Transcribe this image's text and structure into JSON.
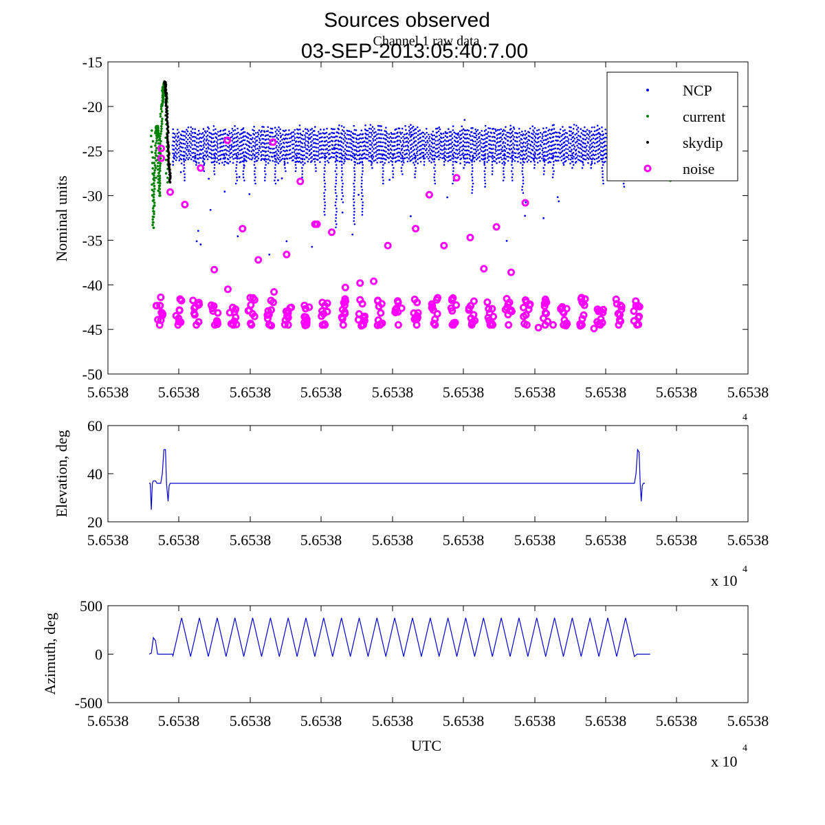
{
  "figure": {
    "title_line1": "Sources observed",
    "subtitle": "Channel 1 raw data",
    "title_line2": "03-SEP-2013:05:40:7.00"
  },
  "colors": {
    "ncp": "#0000ff",
    "current": "#008000",
    "skydip": "#000000",
    "noise": "#ff00ff",
    "line": "#0000cc",
    "axis": "#000000"
  },
  "chart_data": [
    {
      "type": "scatter",
      "panel": "raw-data",
      "ylabel": "Nominal units",
      "ylim": [
        -50,
        -15
      ],
      "yticks": [
        "-15",
        "-20",
        "-25",
        "-30",
        "-35",
        "-40",
        "-45",
        "-50"
      ],
      "xticklabels": [
        "5.6538",
        "5.6538",
        "5.6538",
        "5.6538",
        "5.6538",
        "5.6538",
        "5.6538",
        "5.6538",
        "5.6538",
        "5.6538"
      ],
      "xlim_rel": [
        0,
        1
      ],
      "legend_position": "top-right",
      "series": [
        {
          "name": "NCP",
          "marker": "dot",
          "band_top": -22.5,
          "band_bottom": -26.0,
          "x_start": 0.045,
          "x_end": 0.955,
          "n_scans": 24
        },
        {
          "name": "current",
          "marker": "dot",
          "x": [
            0.005,
            0.008,
            0.011,
            0.013,
            0.015,
            0.017,
            0.019,
            0.021,
            0.024,
            0.027,
            0.03,
            0.033,
            0.034
          ],
          "y": [
            -22.7,
            -33.6,
            -28.0,
            -23.0,
            -22.2,
            -23.4,
            -30.0,
            -25.0,
            -20.0,
            -18.0,
            -17.3,
            -19.5,
            -28.5
          ]
        },
        {
          "name": "skydip",
          "marker": "dot",
          "x": [
            0.03,
            0.032,
            0.034,
            0.036,
            0.038,
            0.04
          ],
          "y": [
            -17.2,
            -18.5,
            -21.0,
            -24.0,
            -26.5,
            -28.5
          ]
        },
        {
          "name": "noise",
          "marker": "circle",
          "cluster_center": -43.0,
          "cluster_halfwidth": 1.6,
          "x_start": 0.02,
          "x_end": 0.93,
          "n_clusters": 27,
          "outliers_x": [
            0.023,
            0.023,
            0.022,
            0.04,
            0.068,
            0.098,
            0.124,
            0.149,
            0.15,
            0.178,
            0.208,
            0.236,
            0.238,
            0.262,
            0.288,
            0.316,
            0.32,
            0.348,
            0.374,
            0.402,
            0.428,
            0.455,
            0.508,
            0.534,
            0.562,
            0.586,
            0.612,
            0.638,
            0.662,
            0.69,
            0.717,
            0.742,
            0.77,
            0.796,
            0.822,
            0.848
          ],
          "outliers_y": [
            -24.7,
            -25.8,
            -41.4,
            -29.6,
            -31.0,
            -26.9,
            -38.3,
            -23.8,
            -40.5,
            -33.7,
            -37.2,
            -24.0,
            -40.8,
            -36.6,
            -28.4,
            -33.2,
            -33.2,
            -34.1,
            -40.3,
            -39.8,
            -39.6,
            -35.6,
            -33.7,
            -29.9,
            -35.6,
            -28.0,
            -34.7,
            -38.2,
            -33.5,
            -38.6,
            -30.8,
            -44.8,
            -44.5,
            -44.3,
            -44.6,
            -44.9
          ]
        }
      ]
    },
    {
      "type": "line",
      "panel": "elevation",
      "ylabel": "Elevation, deg",
      "ylim": [
        20,
        60
      ],
      "yticks": [
        "20",
        "40",
        "60"
      ],
      "xticklabels": [
        "5.6538",
        "5.6538",
        "5.6538",
        "5.6538",
        "5.6538",
        "5.6538",
        "5.6538",
        "5.6538",
        "5.6538",
        "5.6538"
      ],
      "x_multiplier": "x 10",
      "x_multiplier_exp": "4",
      "series": [
        {
          "name": "Elevation",
          "x": [
            0.0,
            0.002,
            0.004,
            0.006,
            0.008,
            0.012,
            0.015,
            0.018,
            0.022,
            0.025,
            0.028,
            0.031,
            0.033,
            0.036,
            0.038,
            0.04,
            0.043,
            0.046,
            0.05,
            0.3,
            0.6,
            0.9,
            0.925,
            0.928,
            0.931,
            0.934,
            0.936,
            0.938,
            0.94,
            0.942,
            0.945
          ],
          "y": [
            36,
            36,
            25,
            36,
            37,
            37,
            36,
            36,
            36,
            40,
            50,
            50,
            36,
            28.5,
            35,
            36,
            36,
            36,
            36,
            36,
            36,
            36,
            36,
            40,
            50,
            49,
            36,
            28.5,
            35,
            36,
            36
          ]
        }
      ]
    },
    {
      "type": "line",
      "panel": "azimuth",
      "ylabel": "Azimuth, deg",
      "xlabel": "UTC",
      "ylim": [
        -500,
        500
      ],
      "yticks": [
        "-500",
        "0",
        "500"
      ],
      "xticklabels": [
        "5.6538",
        "5.6538",
        "5.6538",
        "5.6538",
        "5.6538",
        "5.6538",
        "5.6538",
        "5.6538",
        "5.6538",
        "5.6538"
      ],
      "x_multiplier": "x 10",
      "x_multiplier_exp": "4",
      "series": [
        {
          "name": "Azimuth",
          "start_x": 0.0,
          "scan_start_x": 0.045,
          "scan_end_x": 0.925,
          "end_x": 0.955,
          "n_cycles": 26,
          "peak": 375,
          "trough": -25,
          "pre_bump_x": [
            0.0,
            0.004,
            0.008,
            0.012,
            0.016,
            0.045
          ],
          "pre_bump_y": [
            0,
            10,
            170,
            140,
            0,
            0
          ]
        }
      ]
    }
  ]
}
